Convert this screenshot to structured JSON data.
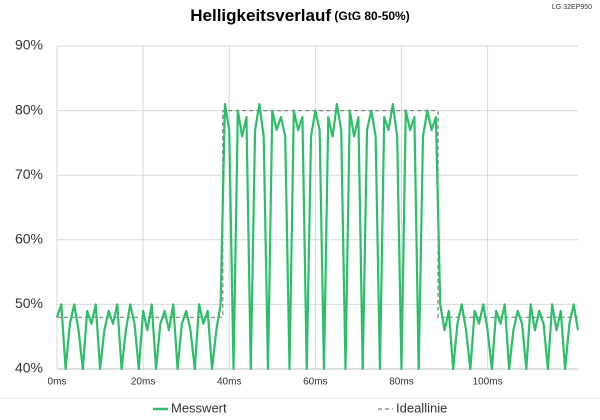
{
  "chart_data": {
    "type": "line",
    "title": "Helligkeitsverlauf",
    "subtitle": "(GtG 80-50%)",
    "corner_label": "LG 32EP950",
    "grid": true,
    "legend": "bottom",
    "xlim": [
      0,
      121
    ],
    "ylim": [
      40,
      90
    ],
    "xticks": [
      {
        "value": 0,
        "label": "0ms"
      },
      {
        "value": 20,
        "label": "20ms"
      },
      {
        "value": 40,
        "label": "40ms"
      },
      {
        "value": 60,
        "label": "60ms"
      },
      {
        "value": 80,
        "label": "80ms"
      },
      {
        "value": 100,
        "label": "100ms"
      }
    ],
    "yticks": [
      {
        "value": 40,
        "label": "40%"
      },
      {
        "value": 50,
        "label": "50%"
      },
      {
        "value": 60,
        "label": "60%"
      },
      {
        "value": 70,
        "label": "70%"
      },
      {
        "value": 80,
        "label": "80%"
      },
      {
        "value": 90,
        "label": "90%"
      }
    ],
    "series": [
      {
        "name": "Messwert",
        "color": "#2ebd6b",
        "dashed": false,
        "x": [
          0,
          1,
          2,
          3,
          4,
          5,
          6,
          7,
          8,
          9,
          10,
          11,
          12,
          13,
          14,
          15,
          16,
          17,
          18,
          19,
          20,
          21,
          22,
          23,
          24,
          25,
          26,
          27,
          28,
          29,
          30,
          31,
          32,
          33,
          34,
          35,
          36,
          37,
          38,
          39,
          40,
          41,
          42,
          43,
          44,
          45,
          46,
          47,
          48,
          49,
          50,
          51,
          52,
          53,
          54,
          55,
          56,
          57,
          58,
          59,
          60,
          61,
          62,
          63,
          64,
          65,
          66,
          67,
          68,
          69,
          70,
          71,
          72,
          73,
          74,
          75,
          76,
          77,
          78,
          79,
          80,
          81,
          82,
          83,
          84,
          85,
          86,
          87,
          88,
          89,
          90,
          91,
          92,
          93,
          94,
          95,
          96,
          97,
          98,
          99,
          100,
          101,
          102,
          103,
          104,
          105,
          106,
          107,
          108,
          109,
          110,
          111,
          112,
          113,
          114,
          115,
          116,
          117,
          118,
          119,
          120,
          121
        ],
        "values": [
          48,
          50,
          40,
          47,
          50,
          46,
          40,
          49,
          47,
          50,
          40,
          46,
          49,
          47,
          50,
          40,
          46,
          50,
          47,
          40,
          49,
          46,
          50,
          40,
          47,
          49,
          46,
          50,
          40,
          47,
          49,
          46,
          40,
          50,
          47,
          49,
          40,
          46,
          50,
          81,
          77,
          40,
          80,
          76,
          79,
          40,
          77,
          81,
          76,
          40,
          80,
          77,
          79,
          76,
          40,
          80,
          77,
          79,
          40,
          76,
          80,
          77,
          40,
          79,
          76,
          81,
          77,
          40,
          80,
          76,
          79,
          40,
          77,
          80,
          76,
          40,
          79,
          77,
          81,
          76,
          40,
          80,
          77,
          79,
          40,
          76,
          80,
          77,
          79,
          50,
          46,
          49,
          40,
          47,
          50,
          46,
          40,
          49,
          47,
          50,
          46,
          40,
          49,
          47,
          50,
          40,
          46,
          49,
          47,
          40,
          50,
          46,
          49,
          47,
          40,
          50,
          46,
          49,
          40,
          47,
          50,
          46
        ]
      },
      {
        "name": "Ideallinie",
        "color": "#808080",
        "dashed": true,
        "x": [
          0,
          38.5,
          38.5,
          88.5,
          88.5,
          121
        ],
        "values": [
          48,
          48,
          80,
          80,
          48,
          48
        ]
      }
    ]
  }
}
